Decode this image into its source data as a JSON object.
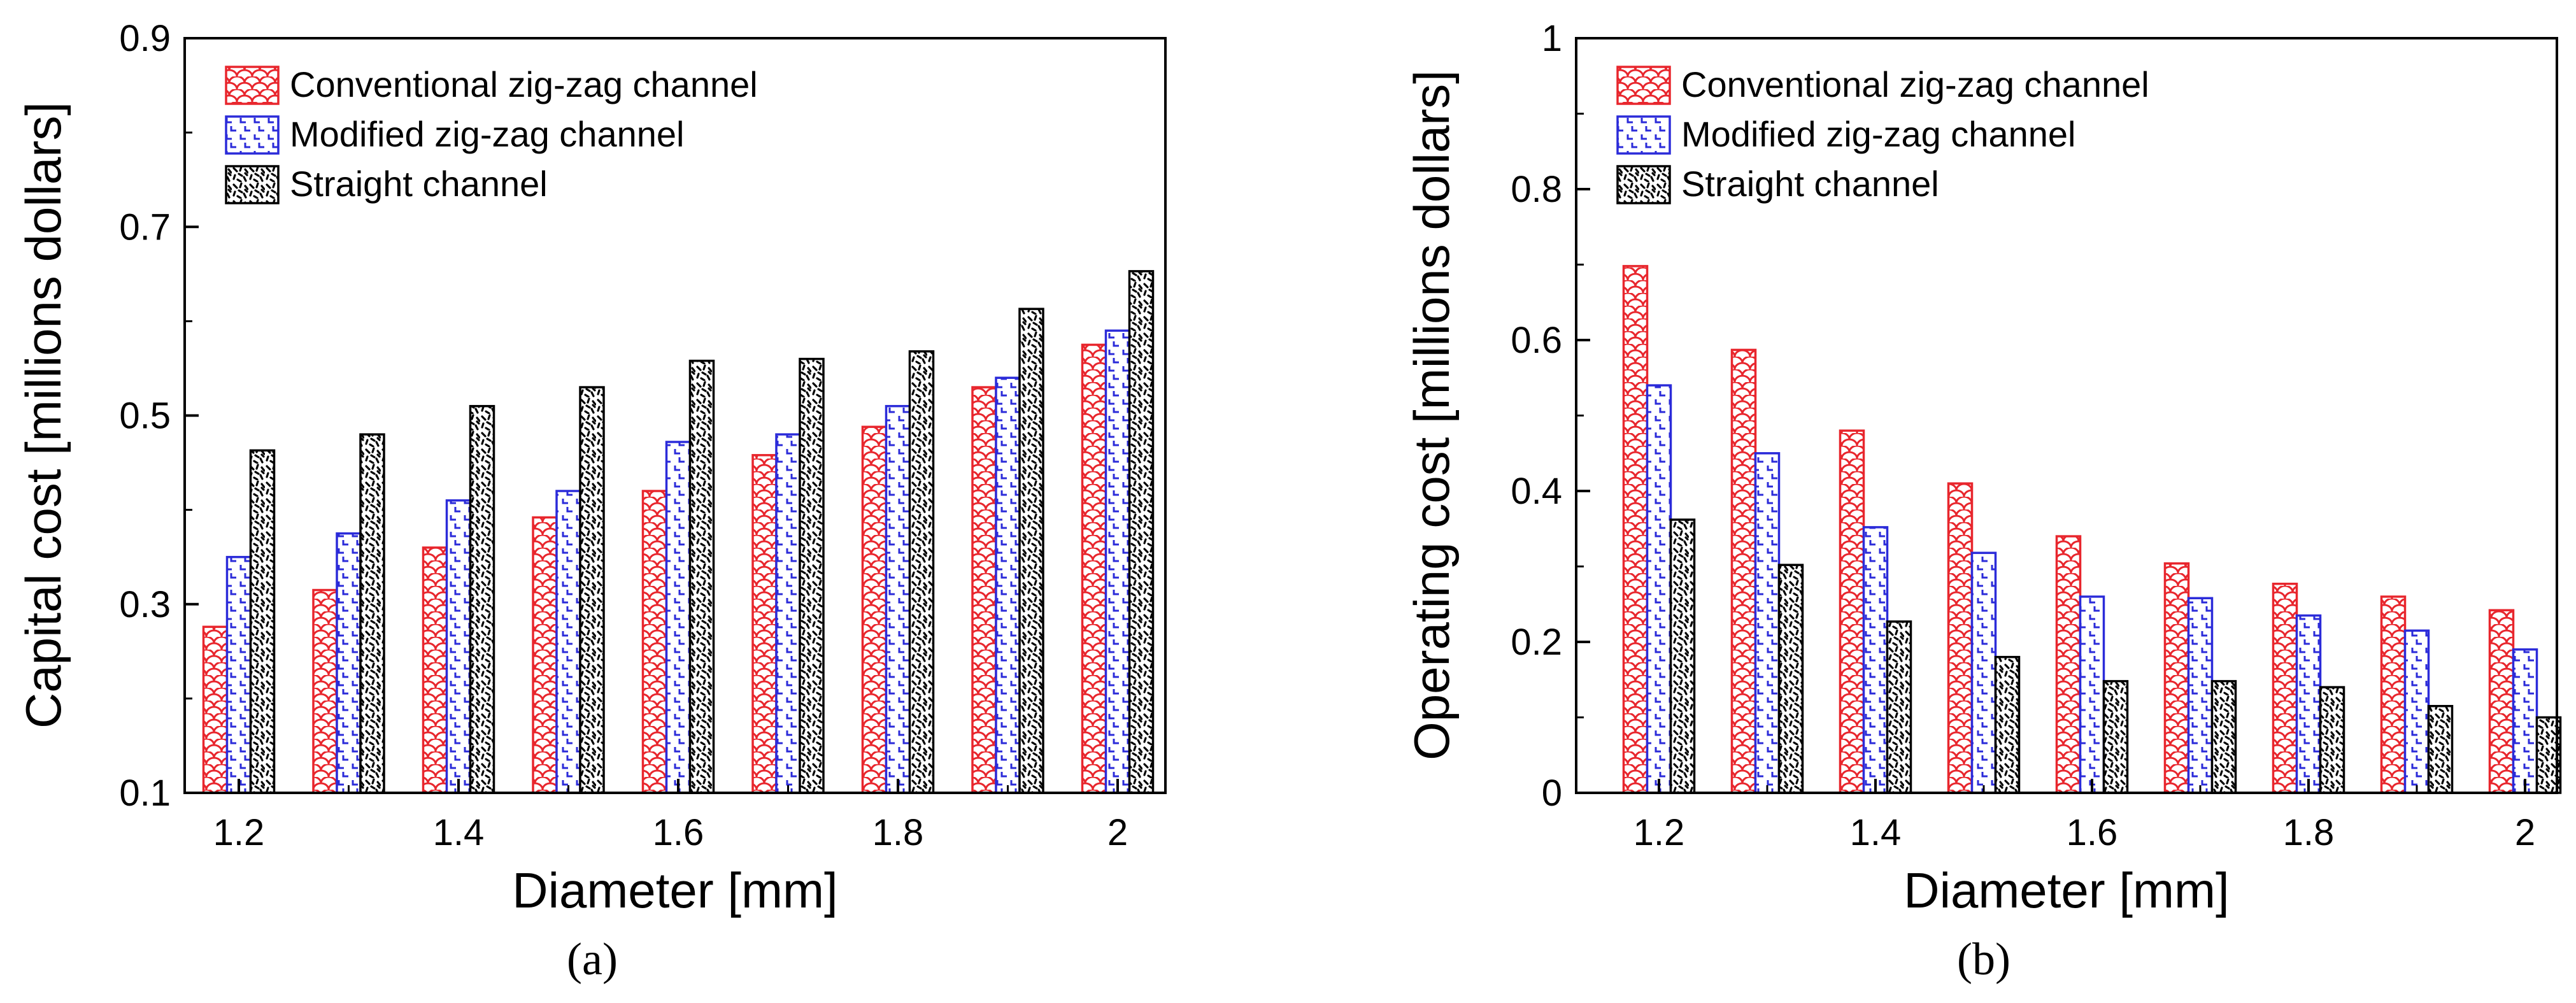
{
  "colors": {
    "conventional": "#e8262d",
    "modified": "#2b2bd9",
    "straight": "#000000"
  },
  "chart_data": [
    {
      "type": "bar",
      "panel_label": "(a)",
      "xlabel": "Diameter [mm]",
      "ylabel": "Capital cost [millions dollars]",
      "ylim": [
        0.1,
        0.9
      ],
      "yticks": [
        "0.1",
        "0.3",
        "0.5",
        "0.7",
        "0.9"
      ],
      "xticks": [
        "1.2",
        "1.4",
        "1.6",
        "1.8",
        "2"
      ],
      "categories": [
        "1.2",
        "1.3",
        "1.4",
        "1.5",
        "1.6",
        "1.7",
        "1.8",
        "1.9",
        "2.0"
      ],
      "grid": false,
      "legend_position": "top-left",
      "series": [
        {
          "name": "Conventional zig-zag channel",
          "pattern": "scales",
          "values": [
            0.276,
            0.315,
            0.36,
            0.392,
            0.42,
            0.458,
            0.488,
            0.53,
            0.575
          ]
        },
        {
          "name": "Modified zig-zag channel",
          "pattern": "steps",
          "values": [
            0.35,
            0.375,
            0.41,
            0.42,
            0.472,
            0.48,
            0.51,
            0.54,
            0.59
          ]
        },
        {
          "name": "Straight channel",
          "pattern": "speckle",
          "values": [
            0.463,
            0.48,
            0.51,
            0.53,
            0.558,
            0.56,
            0.568,
            0.613,
            0.653
          ]
        }
      ]
    },
    {
      "type": "bar",
      "panel_label": "(b)",
      "xlabel": "Diameter [mm]",
      "ylabel": "Operating cost [millions dollars]",
      "ylim": [
        0,
        1
      ],
      "yticks": [
        "0",
        "0.2",
        "0.4",
        "0.6",
        "0.8",
        "1"
      ],
      "xticks": [
        "1.2",
        "1.4",
        "1.6",
        "1.8",
        "2"
      ],
      "categories": [
        "1.2",
        "1.3",
        "1.4",
        "1.5",
        "1.6",
        "1.7",
        "1.8",
        "1.9",
        "2.0"
      ],
      "grid": false,
      "legend_position": "top-left",
      "series": [
        {
          "name": "Conventional zig-zag channel",
          "pattern": "scales",
          "values": [
            0.698,
            0.587,
            0.48,
            0.41,
            0.34,
            0.304,
            0.277,
            0.26,
            0.242
          ]
        },
        {
          "name": "Modified zig-zag channel",
          "pattern": "steps",
          "values": [
            0.54,
            0.45,
            0.352,
            0.318,
            0.26,
            0.258,
            0.235,
            0.215,
            0.19
          ]
        },
        {
          "name": "Straight channel",
          "pattern": "speckle",
          "values": [
            0.362,
            0.302,
            0.227,
            0.18,
            0.148,
            0.148,
            0.14,
            0.115,
            0.1
          ]
        }
      ]
    }
  ]
}
